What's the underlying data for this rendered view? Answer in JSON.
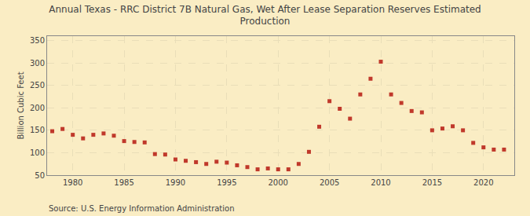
{
  "chart_data": {
    "type": "scatter",
    "title": "Annual Texas - RRC District 7B Natural Gas, Wet After Lease Separation Reserves Estimated\nProduction",
    "ylabel": "Billion Cubic Feet",
    "annotations": [
      "Source: U.S. Energy Information Administration"
    ],
    "color": "#c0392b",
    "marker": "square",
    "grid": true,
    "xlim": [
      1977.5,
      2023
    ],
    "ylim": [
      50,
      360
    ],
    "xticks": [
      1980,
      1985,
      1990,
      1995,
      2000,
      2005,
      2010,
      2015,
      2020
    ],
    "yticks": [
      50,
      100,
      150,
      200,
      250,
      300,
      350
    ],
    "x": [
      1978,
      1979,
      1980,
      1981,
      1982,
      1983,
      1984,
      1985,
      1986,
      1987,
      1988,
      1989,
      1990,
      1991,
      1992,
      1993,
      1994,
      1995,
      1996,
      1997,
      1998,
      1999,
      2000,
      2001,
      2002,
      2003,
      2004,
      2005,
      2006,
      2007,
      2008,
      2009,
      2010,
      2011,
      2012,
      2013,
      2014,
      2015,
      2016,
      2017,
      2018,
      2019,
      2020,
      2021,
      2022
    ],
    "values": [
      148,
      153,
      140,
      132,
      140,
      143,
      138,
      126,
      124,
      123,
      97,
      96,
      85,
      82,
      79,
      75,
      80,
      78,
      72,
      68,
      63,
      65,
      63,
      63,
      75,
      102,
      158,
      215,
      198,
      176,
      230,
      265,
      303,
      230,
      211,
      193,
      190,
      150,
      154,
      159,
      150,
      122,
      112,
      107,
      107
    ]
  }
}
